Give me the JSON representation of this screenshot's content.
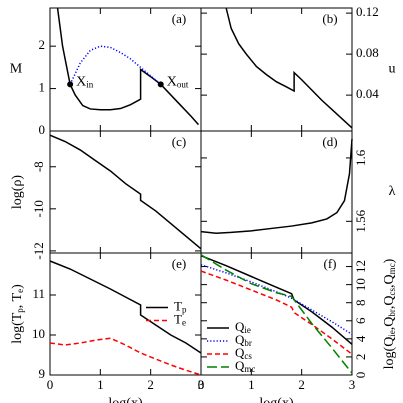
{
  "chart_data": [
    {
      "type": "line",
      "label": "(a)",
      "ylabel": [
        "M"
      ],
      "ylabel_rotated": false,
      "y_axis": "left",
      "xlim": [
        0,
        3
      ],
      "xticks": [
        0,
        1,
        2,
        3
      ],
      "ylim": [
        0,
        2.9
      ],
      "yticks": [
        0,
        1,
        2
      ],
      "series": [
        {
          "color": "#000000",
          "dash": "solid",
          "x": [
            0.15,
            0.25,
            0.4,
            0.5,
            0.65,
            0.8,
            1.0,
            1.2,
            1.4,
            1.6,
            1.8,
            1.8,
            2.0,
            2.2,
            2.4,
            2.6,
            2.8,
            2.95
          ],
          "values": [
            2.9,
            2.0,
            1.1,
            0.85,
            0.6,
            0.52,
            0.5,
            0.5,
            0.53,
            0.62,
            0.75,
            1.45,
            1.28,
            1.1,
            0.85,
            0.6,
            0.35,
            0.15
          ]
        },
        {
          "color": "#0000ff",
          "dash": "dotted",
          "x": [
            0.4,
            0.6,
            0.8,
            1.0,
            1.2,
            1.4,
            1.6,
            1.8,
            2.0,
            2.2
          ],
          "values": [
            1.1,
            1.6,
            1.9,
            2.0,
            1.97,
            1.85,
            1.7,
            1.5,
            1.3,
            1.1
          ]
        }
      ],
      "points": [
        {
          "x": 0.4,
          "y": 1.1,
          "label": [
            "X",
            "in"
          ]
        },
        {
          "x": 2.2,
          "y": 1.1,
          "label": [
            "X",
            "out"
          ]
        }
      ]
    },
    {
      "type": "line",
      "label": "(b)",
      "ylabel": [
        "u"
      ],
      "ylabel_rotated": false,
      "y_axis": "right",
      "xlim": [
        0,
        3
      ],
      "xticks": [
        0,
        1,
        2,
        3
      ],
      "ylim": [
        0.005,
        0.125
      ],
      "yticks": [
        0.04,
        0.08,
        0.12
      ],
      "series": [
        {
          "color": "#000000",
          "dash": "solid",
          "x": [
            0.5,
            0.6,
            0.75,
            0.9,
            1.1,
            1.3,
            1.5,
            1.7,
            1.85,
            1.85,
            2.0,
            2.2,
            2.4,
            2.6,
            2.8,
            3.0
          ],
          "values": [
            0.125,
            0.105,
            0.09,
            0.08,
            0.068,
            0.06,
            0.053,
            0.048,
            0.044,
            0.062,
            0.055,
            0.045,
            0.035,
            0.026,
            0.017,
            0.008
          ]
        }
      ]
    },
    {
      "type": "line",
      "label": "(c)",
      "ylabel": [
        "log(ρ)"
      ],
      "ylabel_rotated": true,
      "ytick_rotated": true,
      "y_axis": "left",
      "xlim": [
        0,
        3
      ],
      "xticks": [
        0,
        1,
        2,
        3
      ],
      "ylim": [
        -12.1,
        -6.3
      ],
      "yticks": [
        -8,
        -10,
        -12
      ],
      "series": [
        {
          "color": "#000000",
          "dash": "solid",
          "x": [
            0,
            0.3,
            0.6,
            0.9,
            1.2,
            1.5,
            1.8,
            1.8,
            2.1,
            2.4,
            2.7,
            3.0
          ],
          "values": [
            -6.5,
            -6.8,
            -7.2,
            -7.7,
            -8.2,
            -8.8,
            -9.3,
            -9.6,
            -10.1,
            -10.7,
            -11.3,
            -11.9
          ]
        }
      ]
    },
    {
      "type": "line",
      "label": "(d)",
      "ylabel": [
        "λ"
      ],
      "ylabel_rotated": false,
      "ytick_rotated": true,
      "y_axis": "right",
      "xlim": [
        0,
        3
      ],
      "xticks": [
        0,
        1,
        2,
        3
      ],
      "ylim": [
        1.54,
        1.617
      ],
      "yticks": [
        1.56,
        1.6
      ],
      "series": [
        {
          "color": "#000000",
          "dash": "solid",
          "x": [
            0,
            0.3,
            0.6,
            1.0,
            1.4,
            1.8,
            2.2,
            2.5,
            2.7,
            2.85,
            2.95,
            3.0
          ],
          "values": [
            1.5535,
            1.5525,
            1.553,
            1.554,
            1.5555,
            1.557,
            1.559,
            1.5615,
            1.5655,
            1.573,
            1.59,
            1.612
          ]
        }
      ]
    },
    {
      "type": "line",
      "label": "(e)",
      "ylabel": [
        "log(T",
        "p",
        ", T",
        "e",
        ")"
      ],
      "ylabel_rotated": true,
      "y_axis": "left",
      "xlabel": "log(x)",
      "legend": "center right",
      "xlim": [
        0,
        3
      ],
      "xticks": [
        0,
        1,
        2,
        3
      ],
      "ylim": [
        9,
        12.05
      ],
      "yticks": [
        9,
        10,
        11
      ],
      "series": [
        {
          "name": [
            "T",
            "p"
          ],
          "color": "#000000",
          "dash": "solid",
          "x": [
            0,
            0.4,
            0.8,
            1.2,
            1.5,
            1.8,
            1.8,
            2.1,
            2.4,
            2.7,
            3.0
          ],
          "values": [
            11.85,
            11.65,
            11.4,
            11.15,
            10.95,
            10.75,
            10.5,
            10.25,
            10.0,
            9.8,
            9.55
          ]
        },
        {
          "name": [
            "T",
            "e"
          ],
          "color": "#ff0000",
          "dash": "dashed",
          "x": [
            0,
            0.3,
            0.6,
            0.9,
            1.2,
            1.5,
            1.8,
            2.1,
            2.4,
            2.7,
            3.0
          ],
          "values": [
            9.8,
            9.75,
            9.8,
            9.87,
            9.92,
            9.75,
            9.55,
            9.4,
            9.25,
            9.12,
            9.0
          ]
        }
      ]
    },
    {
      "type": "line",
      "label": "(f)",
      "ylabel": [
        "log(Q",
        "ie",
        ",Q",
        "br",
        ",Q",
        "cs",
        ",Q",
        "mc",
        ")"
      ],
      "ylabel_rotated": true,
      "ytick_rotated": true,
      "y_axis": "right",
      "xlabel": "log(x)",
      "legend": "lower left",
      "xlim": [
        0,
        3
      ],
      "xticks": [
        0,
        1,
        2,
        3
      ],
      "ylim": [
        0,
        13.5
      ],
      "yticks": [
        0,
        2,
        4,
        6,
        8,
        10,
        12
      ],
      "series": [
        {
          "name": [
            "Q",
            "ie"
          ],
          "color": "#000000",
          "dash": "solid",
          "x": [
            0,
            0.5,
            1,
            1.5,
            1.8,
            1.85,
            2.2,
            2.6,
            3
          ],
          "values": [
            13.2,
            12.1,
            10.9,
            9.7,
            9.0,
            8.3,
            7.0,
            5.3,
            3.4
          ]
        },
        {
          "name": [
            "Q",
            "br"
          ],
          "color": "#0000ff",
          "dash": "dotted",
          "x": [
            0,
            0.5,
            1,
            1.5,
            1.8,
            2.2,
            2.6,
            3
          ],
          "values": [
            12.2,
            11.3,
            10.3,
            9.2,
            8.5,
            7.2,
            5.9,
            4.5
          ]
        },
        {
          "name": [
            "Q",
            "cs"
          ],
          "color": "#ff0000",
          "dash": "dashed",
          "x": [
            0,
            0.5,
            1,
            1.5,
            1.8,
            1.85,
            2.2,
            2.6,
            3
          ],
          "values": [
            11.5,
            10.5,
            9.4,
            8.3,
            7.5,
            6.9,
            5.6,
            4.0,
            2.3
          ]
        },
        {
          "name": [
            "Q",
            "mc"
          ],
          "color": "#008000",
          "dash": "longdash",
          "x": [
            0,
            0.5,
            1,
            1.5,
            1.8,
            2.2,
            2.6,
            2.9,
            3
          ],
          "values": [
            13.3,
            11.6,
            10.1,
            9.1,
            8.7,
            5.7,
            3.0,
            0.9,
            0.2
          ]
        }
      ]
    }
  ]
}
